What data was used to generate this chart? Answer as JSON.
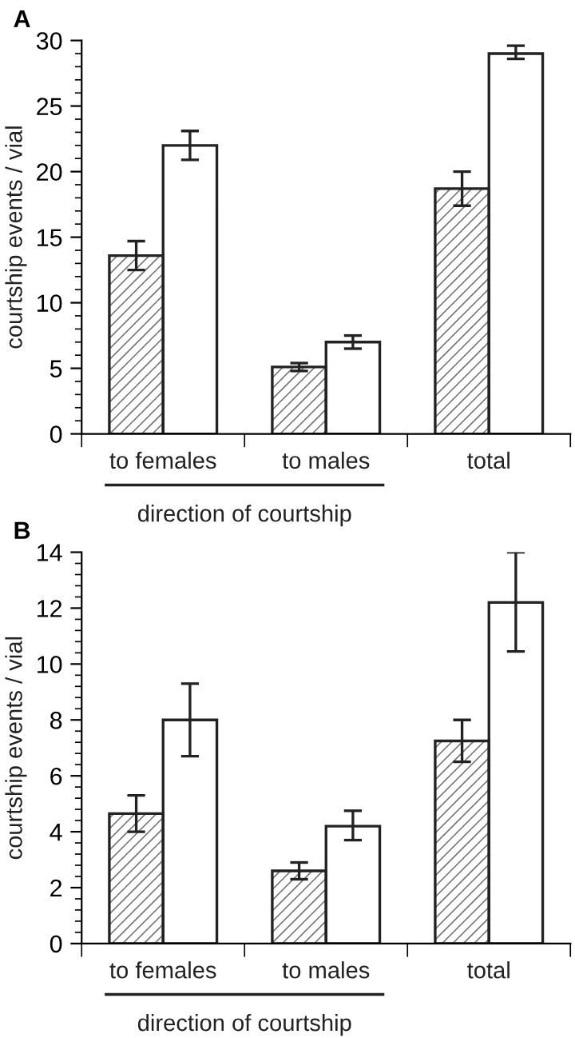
{
  "chart_data": [
    {
      "type": "bar",
      "title": "A",
      "categories": [
        "to females",
        "to males",
        "total"
      ],
      "xlabel": "direction of courtship",
      "ylabel": "courtship events / vial",
      "ylim": [
        0,
        30
      ],
      "yticks": [
        0,
        5,
        10,
        15,
        20,
        25,
        30
      ],
      "grid": false,
      "legend": false,
      "series": [
        {
          "color": "#777777",
          "values": [
            13.6,
            5.1,
            18.7
          ],
          "errors": [
            [
              12.5,
              14.7
            ],
            [
              4.8,
              5.4
            ],
            [
              17.4,
              20.0
            ]
          ]
        },
        {
          "color": "#ffffff",
          "values": [
            22.0,
            7.0,
            29.0
          ],
          "errors": [
            [
              20.9,
              23.1
            ],
            [
              6.5,
              7.5
            ],
            [
              28.6,
              29.6
            ]
          ]
        }
      ]
    },
    {
      "type": "bar",
      "title": "B",
      "categories": [
        "to females",
        "to males",
        "total"
      ],
      "xlabel": "direction of courtship",
      "ylabel": "courtship events / vial",
      "ylim": [
        0,
        14
      ],
      "yticks": [
        0,
        2,
        4,
        6,
        8,
        10,
        12,
        14
      ],
      "grid": false,
      "legend": false,
      "series": [
        {
          "color": "#777777",
          "values": [
            4.65,
            2.6,
            7.25
          ],
          "errors": [
            [
              4.0,
              5.3
            ],
            [
              2.3,
              2.9
            ],
            [
              6.5,
              8.0
            ]
          ]
        },
        {
          "color": "#ffffff",
          "values": [
            8.0,
            4.2,
            12.2
          ],
          "errors": [
            [
              6.7,
              9.3
            ],
            [
              3.7,
              4.75
            ],
            [
              10.45,
              14.0
            ]
          ]
        }
      ]
    }
  ]
}
